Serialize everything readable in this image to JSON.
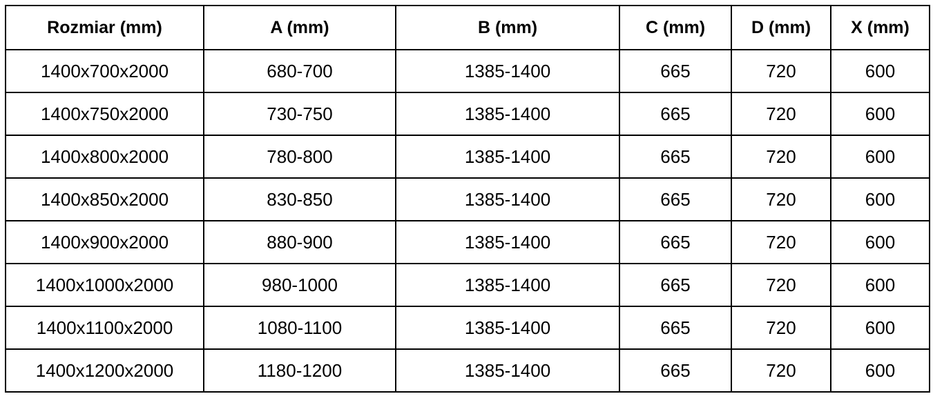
{
  "table": {
    "headers": [
      "Rozmiar (mm)",
      "A (mm)",
      "B (mm)",
      "C (mm)",
      "D (mm)",
      "X (mm)"
    ],
    "rows": [
      [
        "1400x700x2000",
        "680-700",
        "1385-1400",
        "665",
        "720",
        "600"
      ],
      [
        "1400x750x2000",
        "730-750",
        "1385-1400",
        "665",
        "720",
        "600"
      ],
      [
        "1400x800x2000",
        "780-800",
        "1385-1400",
        "665",
        "720",
        "600"
      ],
      [
        "1400x850x2000",
        "830-850",
        "1385-1400",
        "665",
        "720",
        "600"
      ],
      [
        "1400x900x2000",
        "880-900",
        "1385-1400",
        "665",
        "720",
        "600"
      ],
      [
        "1400x1000x2000",
        "980-1000",
        "1385-1400",
        "665",
        "720",
        "600"
      ],
      [
        "1400x1100x2000",
        "1080-1100",
        "1385-1400",
        "665",
        "720",
        "600"
      ],
      [
        "1400x1200x2000",
        "1180-1200",
        "1385-1400",
        "665",
        "720",
        "600"
      ]
    ]
  }
}
